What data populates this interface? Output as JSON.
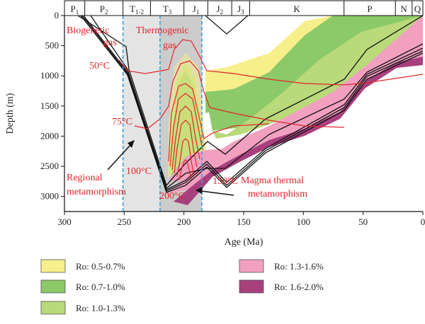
{
  "chart_data": {
    "type": "area",
    "xlabel": "Age (Ma)",
    "ylabel": "Depth (m)",
    "xlim": [
      300,
      0
    ],
    "ylim": [
      0,
      3250
    ],
    "x_ticks": [
      "300",
      "250",
      "200",
      "150",
      "100",
      "50",
      "0"
    ],
    "y_ticks": [
      "0",
      "500",
      "1000",
      "1500",
      "2000",
      "2500",
      "3000"
    ],
    "periods": [
      {
        "label": "P",
        "sub": "1",
        "start": 303,
        "end": 283
      },
      {
        "label": "P",
        "sub": "2",
        "start": 283,
        "end": 251
      },
      {
        "label": "T",
        "sub": "1-2",
        "start": 251,
        "end": 228
      },
      {
        "label": "T",
        "sub": "3",
        "start": 228,
        "end": 200
      },
      {
        "label": "J",
        "sub": "1",
        "start": 200,
        "end": 180
      },
      {
        "label": "J",
        "sub": "2",
        "start": 180,
        "end": 160
      },
      {
        "label": "J",
        "sub": "3",
        "start": 160,
        "end": 145
      },
      {
        "label": "K",
        "sub": "",
        "start": 145,
        "end": 66
      },
      {
        "label": "P",
        "sub": "",
        "start": 66,
        "end": 23
      },
      {
        "label": "N",
        "sub": "",
        "start": 23,
        "end": 9
      },
      {
        "label": "Q",
        "sub": "",
        "start": 9,
        "end": 0
      }
    ],
    "maturity_zones": [
      {
        "name": "Ro: 0.5-0.7%",
        "color": "#f7ef8a"
      },
      {
        "name": "Ro: 0.7-1.0%",
        "color": "#8cc968"
      },
      {
        "name": "Ro: 1.0-1.3%",
        "color": "#b9d97a"
      },
      {
        "name": "Ro: 1.3-1.6%",
        "color": "#f1a0c0"
      },
      {
        "name": "Ro: 1.6-2.0%",
        "color": "#a8407e"
      }
    ],
    "isotherms": [
      {
        "label": "50°C"
      },
      {
        "label": "75°C"
      },
      {
        "label": "100°C"
      },
      {
        "label": "150°C"
      },
      {
        "label": "200°C"
      }
    ],
    "annotations": {
      "biogenic": "Biogenetic gas",
      "biogenic_line1": "Biogenetic",
      "biogenic_line2": "gas",
      "thermogenic_line1": "Thermogenic",
      "thermogenic_line2": "gas",
      "regional_line1": "Regional",
      "regional_line2": "metamorphism",
      "magma_line1": "Magma thermal",
      "magma_line2": "metamorphism"
    },
    "shaded_intervals": [
      {
        "start": 251,
        "end": 185,
        "color": "#e4e4e4"
      },
      {
        "start": 220,
        "end": 185,
        "color": "#cccccc"
      }
    ],
    "dashed_markers": [
      251,
      220,
      185
    ],
    "grid": false,
    "legend_position": "bottom"
  }
}
